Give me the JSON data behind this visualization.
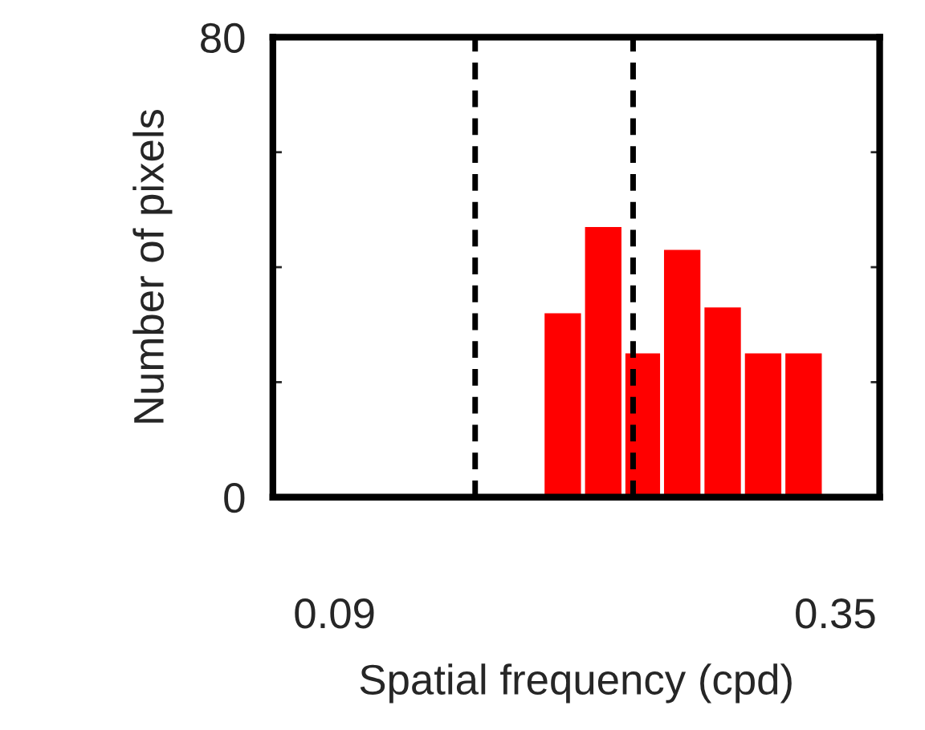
{
  "chart_data": {
    "type": "histogram",
    "xlabel": "Spatial frequency (cpd)",
    "ylabel": "Number of pixels",
    "bins": [
      0.198,
      0.219,
      0.24,
      0.26,
      0.281,
      0.302,
      0.323,
      0.344
    ],
    "values": [
      32,
      47,
      25,
      43,
      33,
      25,
      25
    ],
    "color": "#ff0000",
    "xlim": [
      0.058,
      0.373
    ],
    "xticks": [
      0.09,
      0.35
    ],
    "ylim": [
      0,
      80
    ],
    "yticks": [
      0,
      {
        "value": 20,
        "label": null
      },
      {
        "value": 40,
        "label": null
      },
      {
        "value": 60,
        "label": null
      },
      80
    ],
    "ref_lines": [
      {
        "axis": "x",
        "value": 0.163,
        "color": "#000000",
        "line_style": "dashed"
      },
      {
        "axis": "x",
        "value": 0.245,
        "color": "#000000",
        "line_style": "dashed"
      }
    ],
    "grid": false,
    "legend": false
  }
}
